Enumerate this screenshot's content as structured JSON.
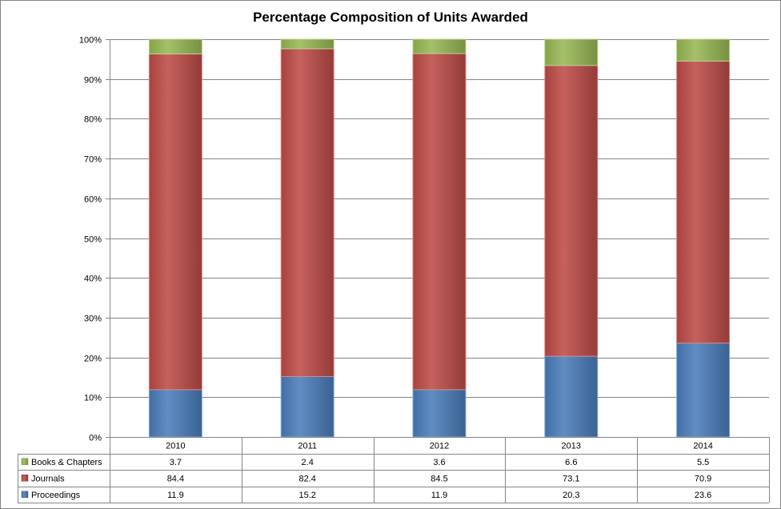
{
  "chart_data": {
    "type": "bar",
    "stacked": true,
    "percent": true,
    "title": "Percentage Composition of Units Awarded",
    "xlabel": "",
    "ylabel": "",
    "ylim": [
      0,
      100
    ],
    "y_ticks": [
      "0%",
      "10%",
      "20%",
      "30%",
      "40%",
      "50%",
      "60%",
      "70%",
      "80%",
      "90%",
      "100%"
    ],
    "grid": true,
    "legend": "data-table-left",
    "categories": [
      "2010",
      "2011",
      "2012",
      "2013",
      "2014"
    ],
    "series": [
      {
        "name": "Proceedings",
        "values": [
          11.9,
          15.2,
          11.9,
          20.3,
          23.6
        ],
        "color": "#4a7ebb"
      },
      {
        "name": "Journals",
        "values": [
          84.4,
          82.4,
          84.5,
          73.1,
          70.9
        ],
        "color": "#be4b48"
      },
      {
        "name": "Books & Chapters",
        "values": [
          3.7,
          2.4,
          3.6,
          6.6,
          5.5
        ],
        "color": "#98b954"
      }
    ],
    "table_row_order": [
      "Books & Chapters",
      "Journals",
      "Proceedings"
    ],
    "table_values": {
      "Books & Chapters": [
        "3.7",
        "2.4",
        "3.6",
        "6.6",
        "5.5"
      ],
      "Journals": [
        "84.4",
        "82.4",
        "84.5",
        "73.1",
        "70.9"
      ],
      "Proceedings": [
        "11.9",
        "15.2",
        "11.9",
        "20.3",
        "23.6"
      ]
    }
  }
}
